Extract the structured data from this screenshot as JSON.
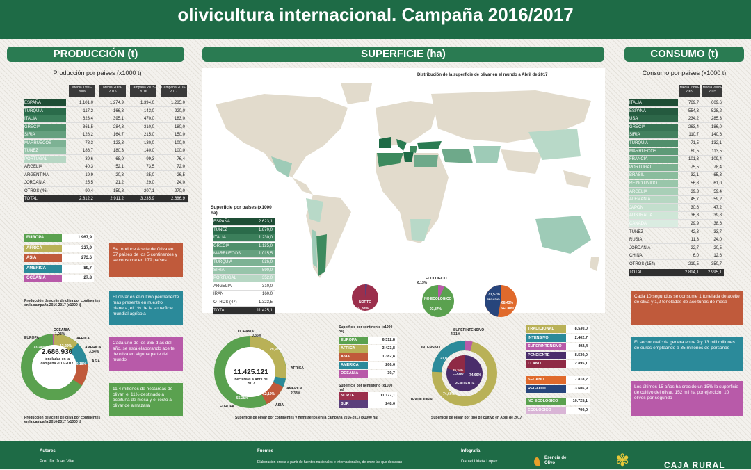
{
  "header": {
    "line1": "",
    "line2": "olivicultura internacional. Campaña 2016/2017"
  },
  "produccion": {
    "section": "PRODUCCIÓN (t)",
    "subtitle": "Producción por paises (x1000 t)",
    "headers": [
      "Media 1990-2009",
      "Media 2009-2015",
      "Campaña 2015-2016",
      "Campaña 2016-2017"
    ],
    "rows": [
      {
        "name": "ESPAÑA",
        "v": [
          "1.101,0",
          "1.274,9",
          "1.394,0",
          "1.285,0"
        ],
        "c": "#1e4d35"
      },
      {
        "name": "TURQUIA",
        "v": [
          "117,2",
          "166,3",
          "143,0",
          "220,0"
        ],
        "c": "#2a6b4a"
      },
      {
        "name": "ITALIA",
        "v": [
          "623,4",
          "395,1",
          "470,0",
          "183,0"
        ],
        "c": "#3b7f5b"
      },
      {
        "name": "GRECIA",
        "v": [
          "361,5",
          "284,3",
          "310,0",
          "180,0"
        ],
        "c": "#4f8f6b"
      },
      {
        "name": "SIRIA",
        "v": [
          "128,2",
          "164,7",
          "215,0",
          "150,0"
        ],
        "c": "#65a07f"
      },
      {
        "name": "MARRUECOS",
        "v": [
          "78,3",
          "123,3",
          "130,0",
          "100,0"
        ],
        "c": "#7db294"
      },
      {
        "name": "TUNEZ",
        "v": [
          "186,7",
          "180,3",
          "140,0",
          "100,0"
        ],
        "c": "#97c4aa"
      },
      {
        "name": "PORTUGAL",
        "v": [
          "39,6",
          "68,9",
          "99,3",
          "76,4"
        ],
        "c": "#b7d7c4"
      },
      {
        "name": "ARGELIA",
        "v": [
          "40,3",
          "52,1",
          "73,5",
          "72,0"
        ],
        "c": ""
      },
      {
        "name": "ARGENTINA",
        "v": [
          "19,9",
          "20,3",
          "25,0",
          "26,5"
        ],
        "c": ""
      },
      {
        "name": "JORDANIA",
        "v": [
          "25,5",
          "21,2",
          "29,0",
          "24,0"
        ],
        "c": ""
      },
      {
        "name": "OTROS (46)",
        "v": [
          "90,4",
          "159,8",
          "207,1",
          "270,0"
        ],
        "c": ""
      },
      {
        "name": "TOTAL",
        "v": [
          "2.812,2",
          "2.911,2",
          "3.235,9",
          "2.686,9"
        ],
        "c": "#2f2f2f"
      }
    ],
    "continents": [
      {
        "name": "EUROPA",
        "value": "1.967,9",
        "color": "#5aa14f"
      },
      {
        "name": "AFRICA",
        "value": "327,9",
        "color": "#b9b157"
      },
      {
        "name": "ASIA",
        "value": "273,6",
        "color": "#c05a3b"
      },
      {
        "name": "AMERICA",
        "value": "89,7",
        "color": "#2b8a9a"
      },
      {
        "name": "OCEANIA",
        "value": "27,8",
        "color": "#b85aa9"
      }
    ],
    "cont_caption": "Producción de aceite de oliva por continentes en la campaña 2016-2017 (x1000 t)",
    "donut_caption": "Producción de aceite de oliva por continentes en la campaña 2016-2017 (x1000 t)",
    "donut_center": "2.686.930",
    "donut_sub": "toneladas en la campaña 2016-2017",
    "donut_labels": {
      "europa": "EUROPA",
      "europa_pct": "73,24%",
      "oceania": "OCEANIA",
      "oceania_pct": "1,03%",
      "africa": "AFRICA",
      "africa_pct": "12,20%",
      "america": "AMERICA",
      "america_pct": "3,34%",
      "asia": "ASIA",
      "asia_pct": "10,18%"
    },
    "boxes": [
      "Se produce Aceite de Oliva en 57 países de los 5 continentes y se consume en 179 países",
      "El olivar es el cultivo permanente más presente en nuestro planeta, el 1% de la superficie mundial agrícola",
      "Cada uno de los 365 días del año, se está elaborando aceite de oliva en alguna parte del mundo",
      "11,4 millones de hectareas de olivar: el 11% destinado a aceituna de mesa y el resto a olivar de almazara"
    ]
  },
  "superficie": {
    "section": "SUPERFICIE (ha)",
    "map_title": "Distribución de la superficie de olivar en el mundo a Abril de 2017",
    "countries_title": "Superficie por países (x1000 ha)",
    "countries": [
      {
        "name": "ESPAÑA",
        "value": "2.623,1"
      },
      {
        "name": "TUNEZ",
        "value": "1.870,0"
      },
      {
        "name": "ITALIA",
        "value": "1.230,0"
      },
      {
        "name": "GRECIA",
        "value": "1.125,0"
      },
      {
        "name": "MARRUECOS",
        "value": "1.015,5"
      },
      {
        "name": "TURQUIA",
        "value": "826,0"
      },
      {
        "name": "SIRIA",
        "value": "590,0"
      },
      {
        "name": "PORTUGAL",
        "value": "352,0"
      },
      {
        "name": "ARGELIA",
        "value": "310,0"
      },
      {
        "name": "IRAN",
        "value": "160,0"
      },
      {
        "name": "OTROS (47)",
        "value": "1.323,5"
      },
      {
        "name": "TOTAL",
        "value": "11.425,1"
      }
    ],
    "pie_norte": {
      "label": "NORTE",
      "pct": "97,83%"
    },
    "pie_eco": {
      "top": "ECOLOGICO",
      "top_pct": "6,13%",
      "main": "NO ECOLOGICO",
      "main_pct": "93,87%"
    },
    "pie_riego": {
      "a": "31,57%",
      "a_lbl": "REGADIO",
      "b": "68,43%",
      "b_lbl": "SECANO"
    },
    "donut_center": "11.425.121",
    "donut_sub": "hectáreas a Abril de 2017",
    "donut_labels": {
      "oceania": "OCEANIA",
      "oceania_pct": "0,35%",
      "africa": "AFRICA",
      "africa_pct": "29,97%",
      "america": "AMERICA",
      "america_pct": "2,33%",
      "asia": "ASIA",
      "asia_pct": "12,10%",
      "europa": "EUROPA",
      "europa_pct": "55,25%"
    },
    "donut_caption": "Superficie de olivar por continentes y hemisferios en la campaña 2016-2017 (x1000 ha)",
    "cont_title": "Superficie por continente (x1000 ha)",
    "cont": [
      {
        "name": "EUROPA",
        "value": "6.312,8",
        "color": "#5aa14f"
      },
      {
        "name": "AFRICA",
        "value": "3.423,8",
        "color": "#b9b157"
      },
      {
        "name": "ASIA",
        "value": "1.382,8",
        "color": "#c05a3b"
      },
      {
        "name": "AMERICA",
        "value": "266,0",
        "color": "#2b8a9a"
      },
      {
        "name": "OCEANIA",
        "value": "39,7",
        "color": "#b85aa9"
      }
    ],
    "hemi_title": "Superficie por hemisferio (x1000 ha)",
    "hemi": [
      {
        "name": "NORTE",
        "value": "11.177,1",
        "color": "#9b2f4c"
      },
      {
        "name": "SUR",
        "value": "248,0",
        "color": "#5b3f7b"
      }
    ],
    "tipo_labels": {
      "super": "SUPERINTENSIVO",
      "super_pct": "4,31%",
      "intensivo": "INTENSIVO",
      "intensivo_pct": "21,03%",
      "tradicional": "TRADICIONAL",
      "tradicional_pct": "74,66%",
      "llano": "25,34% LLANO",
      "pend": "74,66%",
      "pendiente": "PENDIENTE"
    },
    "tipo_caption": "Superficie de olivar por tipo de cultivo en Abril de 2017",
    "tipo": [
      {
        "name": "TRADICIONAL",
        "value": "8.530,0",
        "color": "#b9b157"
      },
      {
        "name": "INTENSIVO",
        "value": "2.402,7",
        "color": "#2b8a9a"
      },
      {
        "name": "SUPERINTENSIVO",
        "value": "492,4",
        "color": "#b85aa9"
      },
      {
        "name": "PENDIENTE",
        "value": "8.530,0",
        "color": "#4a2d6b"
      },
      {
        "name": "LLANO",
        "value": "2.895,1",
        "color": "#8f2a45"
      }
    ],
    "riego": [
      {
        "name": "SECANO",
        "value": "7.818,2",
        "color": "#e06a2c"
      },
      {
        "name": "REGADIO",
        "value": "3.606,9",
        "color": "#27457c"
      }
    ],
    "eco": [
      {
        "name": "NO ECOLOGICO",
        "value": "10.725,1",
        "color": "#5aa14f"
      },
      {
        "name": "ECOLOGICO",
        "value": "700,0",
        "color": "#d9b5d6"
      }
    ]
  },
  "consumo": {
    "section": "CONSUMO (t)",
    "subtitle": "Consumo por paises (x1000 t)",
    "headers": [
      "Media 1990-2009",
      "Media 2009-2015"
    ],
    "rows": [
      {
        "name": "ITALIA",
        "v": [
          "769,7",
          "609,6"
        ],
        "c": "#1e4d35"
      },
      {
        "name": "ESPAÑA",
        "v": [
          "554,3",
          "528,2"
        ],
        "c": "#245a3f"
      },
      {
        "name": "USA",
        "v": [
          "234,2",
          "285,3"
        ],
        "c": "#2d6749"
      },
      {
        "name": "GRECIA",
        "v": [
          "263,4",
          "186,0"
        ],
        "c": "#377454"
      },
      {
        "name": "SIRIA",
        "v": [
          "110,7",
          "140,6"
        ],
        "c": "#43815f"
      },
      {
        "name": "TURQUIA",
        "v": [
          "71,5",
          "132,1"
        ],
        "c": "#508e6b"
      },
      {
        "name": "MARRUECOS",
        "v": [
          "60,5",
          "113,5"
        ],
        "c": "#5e9a77"
      },
      {
        "name": "FRANCIA",
        "v": [
          "101,3",
          "109,4"
        ],
        "c": "#6ca683"
      },
      {
        "name": "PORTUGAL",
        "v": [
          "75,5",
          "78,4"
        ],
        "c": "#7bb190"
      },
      {
        "name": "BRASIL",
        "v": [
          "32,1",
          "65,3"
        ],
        "c": "#8abc9d"
      },
      {
        "name": "REINO UNIDO",
        "v": [
          "56,8",
          "61,0"
        ],
        "c": "#99c6aa"
      },
      {
        "name": "ARGELIA",
        "v": [
          "39,3",
          "59,4"
        ],
        "c": "#a8cfb7"
      },
      {
        "name": "ALEMANIA",
        "v": [
          "45,7",
          "59,2"
        ],
        "c": "#b6d7c2"
      },
      {
        "name": "JAPON",
        "v": [
          "30,6",
          "47,2"
        ],
        "c": "#c3dfcd"
      },
      {
        "name": "AUSTRALIA",
        "v": [
          "36,8",
          "39,8"
        ],
        "c": "#cfe6d7"
      },
      {
        "name": "CANADA",
        "v": [
          "29,9",
          "38,6"
        ],
        "c": "#daece1"
      },
      {
        "name": "TUNEZ",
        "v": [
          "42,3",
          "33,7"
        ],
        "c": ""
      },
      {
        "name": "RUSIA",
        "v": [
          "11,3",
          "24,0"
        ],
        "c": ""
      },
      {
        "name": "JORDANIA",
        "v": [
          "22,7",
          "20,5"
        ],
        "c": ""
      },
      {
        "name": "CHINA",
        "v": [
          "6,0",
          "12,6"
        ],
        "c": ""
      },
      {
        "name": "OTROS (154)",
        "v": [
          "219,5",
          "350,7"
        ],
        "c": ""
      },
      {
        "name": "TOTAL",
        "v": [
          "2.814,1",
          "2.995,1"
        ],
        "c": "#2f2f2f"
      }
    ],
    "boxes": [
      "Cada 10 segundos se consume 1 tonelada de aceite de oliva y 1,2 toneladas de aceitunas de mesa",
      "El sector oleícola genera entre 9 y 13 mill millones de euros empleando a 35 millones de personas",
      "Los últimos 15 años ha crecido un 15% la superficie de cultivo del olivar, 152 mil ha por ejercicio, 10 olivos por segundo"
    ]
  },
  "footer": {
    "autores": "Autores",
    "autor1": "Prof. Dr. Juan Vilar",
    "fuentes": "Fuentes",
    "fuentes_txt": "Elaboración propia a partir de fuentes nacionales e internacionales, de entre las que destacan",
    "infografia": "Infografía",
    "infografia_txt": "Daniel Urieta López",
    "logo1": "Esencia de Olivo",
    "logo2": "CAJA RURAL"
  },
  "colors": {
    "green_dark": "#1e6b46",
    "green_bar": "#2a7b52"
  }
}
